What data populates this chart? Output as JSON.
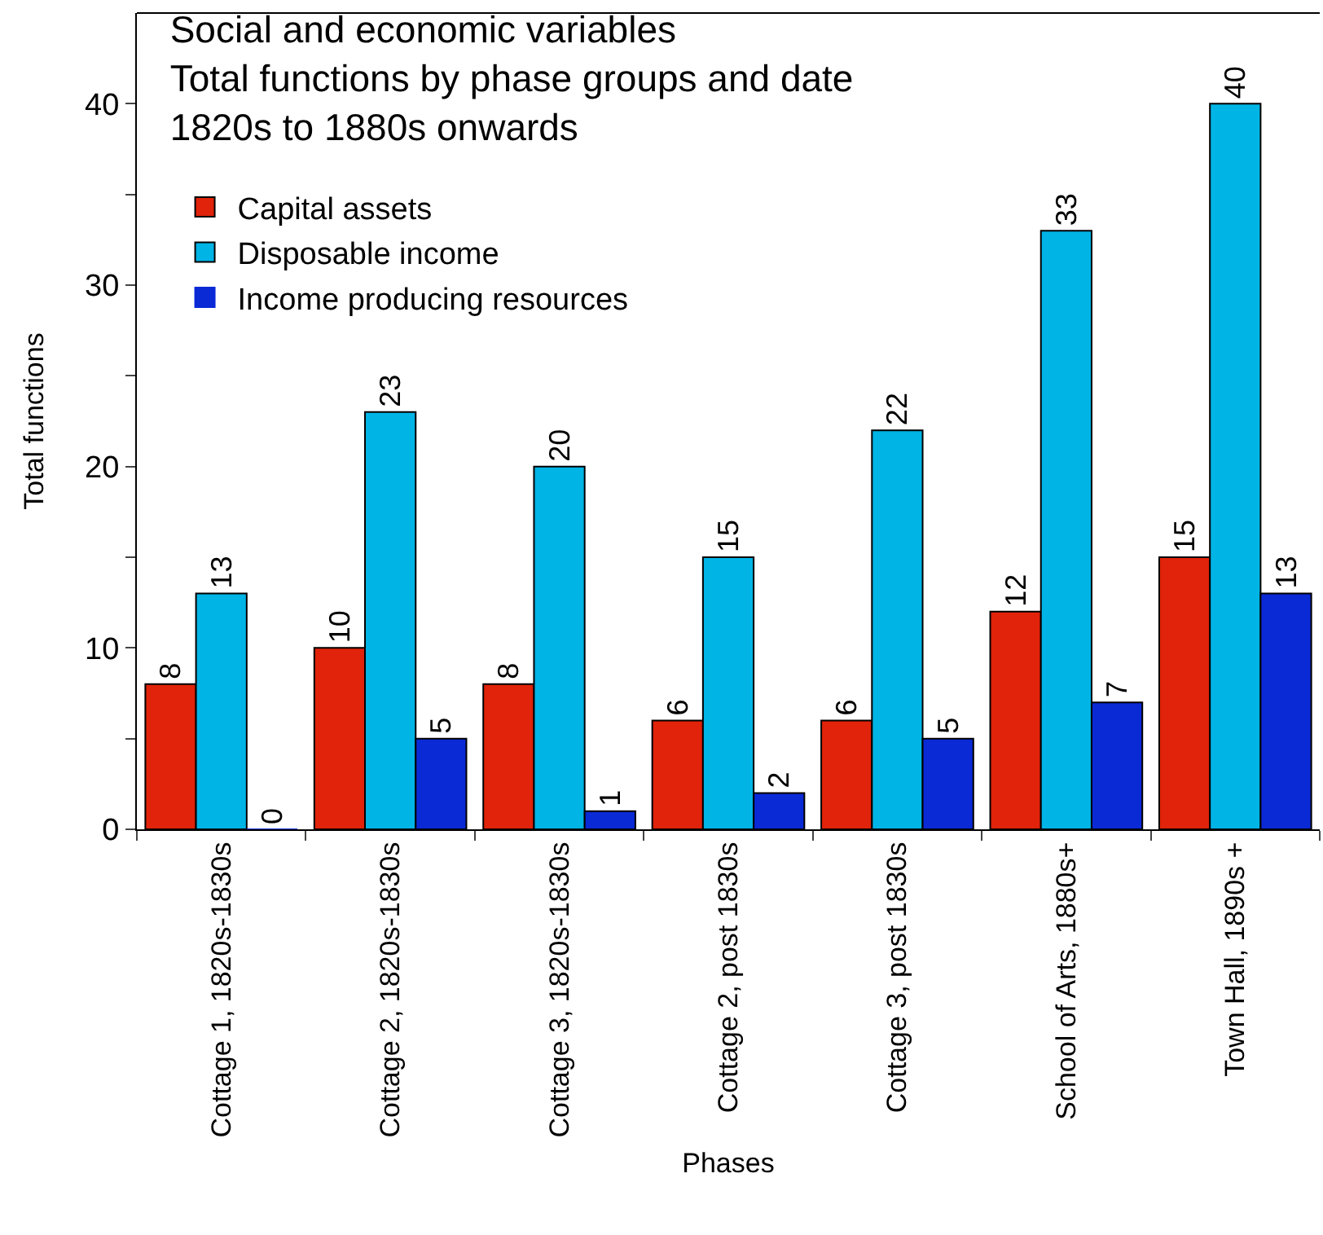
{
  "chart_data": {
    "type": "bar",
    "title": "Social and economic variables\nTotal functions by phase groups and date\n1820s to 1880s onwards",
    "xlabel": "Phases",
    "ylabel": "Total functions",
    "categories": [
      "Cottage 1, 1820s-1830s",
      "Cottage 2, 1820s-1830s",
      "Cottage 3, 1820s-1830s",
      "Cottage 2, post 1830s",
      "Cottage 3, post 1830s",
      "School of Arts, 1880s+",
      "Town Hall, 1890s +"
    ],
    "series": [
      {
        "name": "Capital assets",
        "color": "#e0230a",
        "values": [
          8,
          10,
          8,
          6,
          6,
          12,
          15
        ]
      },
      {
        "name": "Disposable income",
        "color": "#00b4e6",
        "values": [
          13,
          23,
          20,
          15,
          22,
          33,
          40
        ]
      },
      {
        "name": "Income producing resources",
        "color": "#0a2ad6",
        "values": [
          0,
          5,
          1,
          2,
          5,
          7,
          13
        ]
      }
    ],
    "ylim": [
      0,
      45
    ],
    "yticks": [
      0,
      {
        "value": 5,
        "label": null
      },
      10,
      {
        "value": 15,
        "label": null
      },
      20,
      {
        "value": 25,
        "label": null
      },
      30,
      {
        "value": 35,
        "label": null
      },
      40
    ],
    "data_labels": true,
    "grid": false,
    "legend": "top left"
  }
}
